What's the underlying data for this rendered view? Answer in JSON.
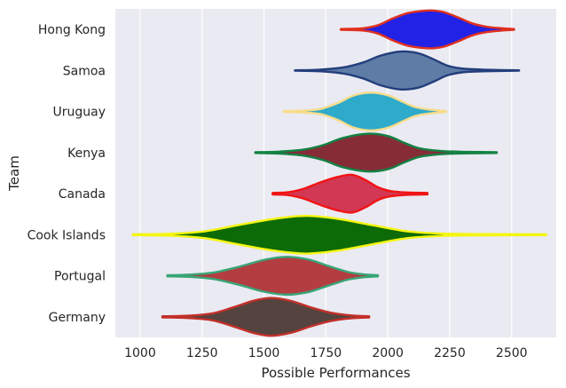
{
  "chart_data": {
    "type": "violin",
    "orientation": "horizontal",
    "xlabel": "Possible Performances",
    "ylabel": "Team",
    "xlim": [
      900,
      2680
    ],
    "xticks": [
      1000,
      1250,
      1500,
      1750,
      2000,
      2250,
      2500
    ],
    "grid": true,
    "series": [
      {
        "name": "Hong Kong",
        "fill": "#2222e6",
        "line": "#e0301e",
        "min": 1810,
        "max": 2510,
        "q1": 2060,
        "median": 2150,
        "q3": 2230,
        "mode": 2180,
        "width": 0.92,
        "density": [
          [
            1810,
            0.02
          ],
          [
            1900,
            0.06
          ],
          [
            1960,
            0.22
          ],
          [
            2020,
            0.58
          ],
          [
            2080,
            0.86
          ],
          [
            2140,
            0.98
          ],
          [
            2180,
            1.0
          ],
          [
            2230,
            0.9
          ],
          [
            2290,
            0.6
          ],
          [
            2340,
            0.32
          ],
          [
            2400,
            0.14
          ],
          [
            2460,
            0.06
          ],
          [
            2510,
            0.02
          ]
        ]
      },
      {
        "name": "Samoa",
        "fill": "#5e7ca6",
        "line": "#233e7c",
        "min": 1625,
        "max": 2530,
        "q1": 1950,
        "median": 2050,
        "q3": 2130,
        "mode": 2050,
        "width": 0.92,
        "density": [
          [
            1625,
            0.01
          ],
          [
            1720,
            0.04
          ],
          [
            1820,
            0.16
          ],
          [
            1900,
            0.42
          ],
          [
            1970,
            0.78
          ],
          [
            2050,
            1.0
          ],
          [
            2120,
            0.92
          ],
          [
            2180,
            0.62
          ],
          [
            2240,
            0.26
          ],
          [
            2300,
            0.1
          ],
          [
            2400,
            0.04
          ],
          [
            2530,
            0.01
          ]
        ]
      },
      {
        "name": "Uruguay",
        "fill": "#2eaacb",
        "line": "#f7dc8a",
        "min": 1580,
        "max": 2235,
        "q1": 1860,
        "median": 1930,
        "q3": 2000,
        "mode": 1930,
        "width": 0.92,
        "density": [
          [
            1580,
            0.02
          ],
          [
            1660,
            0.05
          ],
          [
            1730,
            0.14
          ],
          [
            1800,
            0.46
          ],
          [
            1860,
            0.84
          ],
          [
            1930,
            1.0
          ],
          [
            2000,
            0.86
          ],
          [
            2060,
            0.52
          ],
          [
            2110,
            0.24
          ],
          [
            2170,
            0.1
          ],
          [
            2235,
            0.02
          ]
        ]
      },
      {
        "name": "Kenya",
        "fill": "#862c37",
        "line": "#138243",
        "min": 1465,
        "max": 2440,
        "q1": 1840,
        "median": 1920,
        "q3": 2000,
        "mode": 1920,
        "width": 0.92,
        "density": [
          [
            1465,
            0.02
          ],
          [
            1560,
            0.05
          ],
          [
            1660,
            0.16
          ],
          [
            1740,
            0.4
          ],
          [
            1820,
            0.78
          ],
          [
            1920,
            1.0
          ],
          [
            2000,
            0.88
          ],
          [
            2070,
            0.5
          ],
          [
            2130,
            0.22
          ],
          [
            2220,
            0.08
          ],
          [
            2320,
            0.04
          ],
          [
            2440,
            0.02
          ]
        ]
      },
      {
        "name": "Canada",
        "fill": "#d23854",
        "line": "#f11414",
        "min": 1535,
        "max": 2160,
        "q1": 1790,
        "median": 1850,
        "q3": 1900,
        "mode": 1855,
        "width": 0.92,
        "density": [
          [
            1535,
            0.04
          ],
          [
            1600,
            0.08
          ],
          [
            1660,
            0.26
          ],
          [
            1720,
            0.56
          ],
          [
            1790,
            0.86
          ],
          [
            1855,
            1.0
          ],
          [
            1910,
            0.72
          ],
          [
            1960,
            0.34
          ],
          [
            2010,
            0.14
          ],
          [
            2080,
            0.06
          ],
          [
            2160,
            0.04
          ]
        ]
      },
      {
        "name": "Cook Islands",
        "fill": "#0d6b07",
        "line": "#f5f512",
        "min": 970,
        "max": 2640,
        "q1": 1540,
        "median": 1670,
        "q3": 1820,
        "mode": 1670,
        "width": 0.92,
        "density": [
          [
            970,
            0.02
          ],
          [
            1120,
            0.05
          ],
          [
            1260,
            0.18
          ],
          [
            1400,
            0.52
          ],
          [
            1540,
            0.84
          ],
          [
            1670,
            1.0
          ],
          [
            1800,
            0.84
          ],
          [
            1940,
            0.5
          ],
          [
            2080,
            0.18
          ],
          [
            2220,
            0.06
          ],
          [
            2400,
            0.03
          ],
          [
            2640,
            0.02
          ]
        ]
      },
      {
        "name": "Portugal",
        "fill": "#b33d40",
        "line": "#38a577",
        "min": 1110,
        "max": 1960,
        "q1": 1500,
        "median": 1590,
        "q3": 1680,
        "mode": 1590,
        "width": 0.92,
        "density": [
          [
            1110,
            0.03
          ],
          [
            1200,
            0.06
          ],
          [
            1300,
            0.18
          ],
          [
            1400,
            0.48
          ],
          [
            1500,
            0.84
          ],
          [
            1590,
            1.0
          ],
          [
            1680,
            0.86
          ],
          [
            1760,
            0.52
          ],
          [
            1840,
            0.2
          ],
          [
            1900,
            0.08
          ],
          [
            1960,
            0.03
          ]
        ]
      },
      {
        "name": "Germany",
        "fill": "#54433e",
        "line": "#c4302a",
        "min": 1090,
        "max": 1925,
        "q1": 1460,
        "median": 1530,
        "q3": 1610,
        "mode": 1530,
        "width": 0.92,
        "density": [
          [
            1090,
            0.03
          ],
          [
            1190,
            0.06
          ],
          [
            1290,
            0.18
          ],
          [
            1380,
            0.52
          ],
          [
            1460,
            0.86
          ],
          [
            1530,
            1.0
          ],
          [
            1610,
            0.84
          ],
          [
            1690,
            0.5
          ],
          [
            1770,
            0.22
          ],
          [
            1850,
            0.08
          ],
          [
            1925,
            0.03
          ]
        ]
      }
    ]
  }
}
